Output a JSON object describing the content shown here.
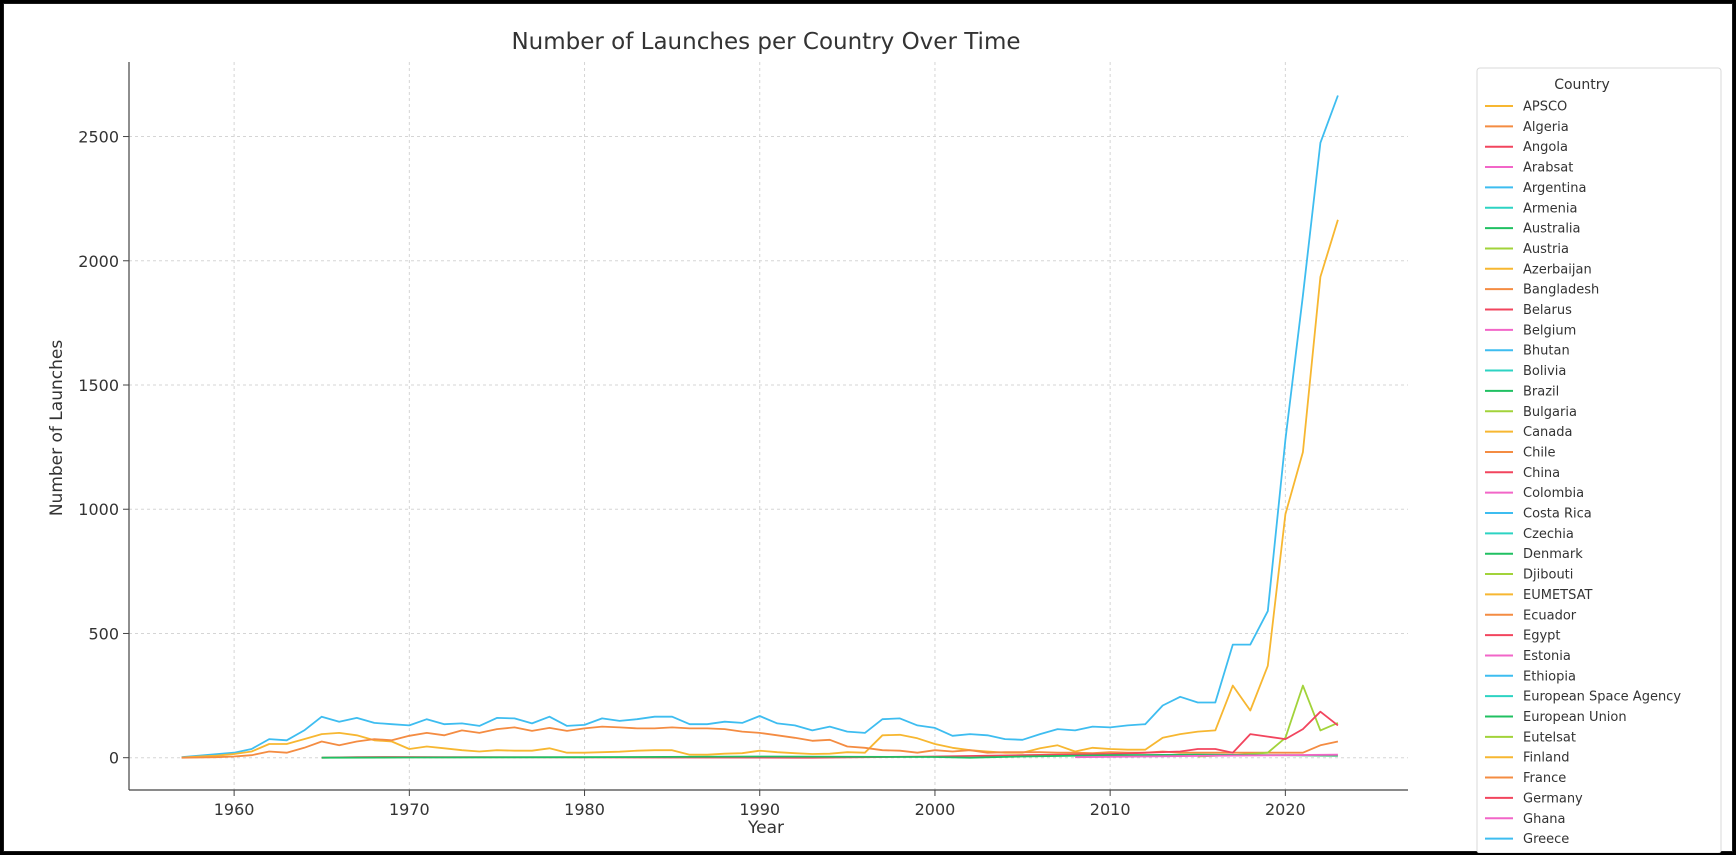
{
  "chart_data": {
    "type": "line",
    "title": "Number of Launches per Country Over Time",
    "xlabel": "Year",
    "ylabel": "Number of Launches",
    "xlim": [
      1954,
      2027
    ],
    "ylim": [
      -130,
      2800
    ],
    "x_ticks": [
      "1960",
      "1970",
      "1980",
      "1990",
      "2000",
      "2010",
      "2020"
    ],
    "x_tick_values": [
      1960,
      1970,
      1980,
      1990,
      2000,
      2010,
      2020
    ],
    "y_ticks": [
      "0",
      "500",
      "1000",
      "1500",
      "2000",
      "2500"
    ],
    "y_tick_values": [
      0,
      500,
      1000,
      1500,
      2000,
      2500
    ],
    "grid": true,
    "legend": {
      "title": "Country",
      "placement": "right outside",
      "entries": [
        {
          "name": "APSCO",
          "color": "#f7b731"
        },
        {
          "name": "Algeria",
          "color": "#f48c42"
        },
        {
          "name": "Angola",
          "color": "#f2455e"
        },
        {
          "name": "Arabsat",
          "color": "#f266c8"
        },
        {
          "name": "Argentina",
          "color": "#3ebdf0"
        },
        {
          "name": "Armenia",
          "color": "#2dd3c3"
        },
        {
          "name": "Australia",
          "color": "#20c062"
        },
        {
          "name": "Austria",
          "color": "#a2d33a"
        },
        {
          "name": "Azerbaijan",
          "color": "#f7b731"
        },
        {
          "name": "Bangladesh",
          "color": "#f48c42"
        },
        {
          "name": "Belarus",
          "color": "#f2455e"
        },
        {
          "name": "Belgium",
          "color": "#f266c8"
        },
        {
          "name": "Bhutan",
          "color": "#3ebdf0"
        },
        {
          "name": "Bolivia",
          "color": "#2dd3c3"
        },
        {
          "name": "Brazil",
          "color": "#20c062"
        },
        {
          "name": "Bulgaria",
          "color": "#a2d33a"
        },
        {
          "name": "Canada",
          "color": "#f7b731"
        },
        {
          "name": "Chile",
          "color": "#f48c42"
        },
        {
          "name": "China",
          "color": "#f2455e"
        },
        {
          "name": "Colombia",
          "color": "#f266c8"
        },
        {
          "name": "Costa Rica",
          "color": "#3ebdf0"
        },
        {
          "name": "Czechia",
          "color": "#2dd3c3"
        },
        {
          "name": "Denmark",
          "color": "#20c062"
        },
        {
          "name": "Djibouti",
          "color": "#a2d33a"
        },
        {
          "name": "EUMETSAT",
          "color": "#f7b731"
        },
        {
          "name": "Ecuador",
          "color": "#f48c42"
        },
        {
          "name": "Egypt",
          "color": "#f2455e"
        },
        {
          "name": "Estonia",
          "color": "#f266c8"
        },
        {
          "name": "Ethiopia",
          "color": "#3ebdf0"
        },
        {
          "name": "European Space Agency",
          "color": "#2dd3c3"
        },
        {
          "name": "European Union",
          "color": "#20c062"
        },
        {
          "name": "Eutelsat",
          "color": "#a2d33a"
        },
        {
          "name": "Finland",
          "color": "#f7b731"
        },
        {
          "name": "France",
          "color": "#f48c42"
        },
        {
          "name": "Germany",
          "color": "#f2455e"
        },
        {
          "name": "Ghana",
          "color": "#f266c8"
        },
        {
          "name": "Greece",
          "color": "#3ebdf0"
        }
      ]
    },
    "series": [
      {
        "name": "Argentina",
        "color": "#3ebdf0",
        "x": [
          1957,
          1958,
          1959,
          1960,
          1961,
          1962,
          1963,
          1964,
          1965,
          1966,
          1967,
          1968,
          1969,
          1970,
          1971,
          1972,
          1973,
          1974,
          1975,
          1976,
          1977,
          1978,
          1979,
          1980,
          1981,
          1982,
          1983,
          1984,
          1985,
          1986,
          1987,
          1988,
          1989,
          1990,
          1991,
          1992,
          1993,
          1994,
          1995,
          1996,
          1997,
          1998,
          1999,
          2000,
          2001,
          2002,
          2003,
          2004,
          2005,
          2006,
          2007,
          2008,
          2009,
          2010,
          2011,
          2012,
          2013,
          2014,
          2015,
          2016,
          2017,
          2018,
          2019,
          2020,
          2021,
          2022,
          2023
        ],
        "y": [
          2,
          8,
          14,
          20,
          35,
          75,
          70,
          110,
          165,
          145,
          160,
          140,
          135,
          130,
          155,
          135,
          138,
          128,
          160,
          158,
          138,
          165,
          128,
          132,
          158,
          148,
          155,
          165,
          165,
          135,
          135,
          145,
          140,
          168,
          138,
          130,
          110,
          125,
          105,
          100,
          155,
          158,
          130,
          120,
          88,
          95,
          90,
          75,
          72,
          95,
          115,
          110,
          125,
          122,
          130,
          135,
          210,
          245,
          222,
          222,
          455,
          455,
          590,
          1280,
          1860,
          2475,
          2665
        ]
      },
      {
        "name": "Azerbaijan",
        "color": "#f7b731",
        "x": [
          1957,
          1958,
          1959,
          1960,
          1961,
          1962,
          1963,
          1964,
          1965,
          1966,
          1967,
          1968,
          1969,
          1970,
          1971,
          1972,
          1973,
          1974,
          1975,
          1976,
          1977,
          1978,
          1979,
          1980,
          1981,
          1982,
          1983,
          1984,
          1985,
          1986,
          1987,
          1988,
          1989,
          1990,
          1991,
          1992,
          1993,
          1994,
          1995,
          1996,
          1997,
          1998,
          1999,
          2000,
          2001,
          2002,
          2003,
          2004,
          2005,
          2006,
          2007,
          2008,
          2009,
          2010,
          2011,
          2012,
          2013,
          2014,
          2015,
          2016,
          2017,
          2018,
          2019,
          2020,
          2021,
          2022,
          2023
        ],
        "y": [
          1,
          5,
          8,
          15,
          25,
          55,
          55,
          75,
          95,
          100,
          90,
          70,
          65,
          35,
          45,
          38,
          30,
          25,
          30,
          28,
          28,
          38,
          20,
          20,
          22,
          24,
          28,
          30,
          30,
          12,
          12,
          16,
          18,
          28,
          22,
          18,
          15,
          16,
          22,
          20,
          90,
          92,
          78,
          55,
          40,
          30,
          25,
          20,
          20,
          38,
          50,
          25,
          40,
          35,
          32,
          32,
          80,
          95,
          105,
          110,
          290,
          190,
          370,
          980,
          1230,
          1935,
          2165
        ]
      },
      {
        "name": "Bangladesh",
        "color": "#f48c42",
        "x": [
          1957,
          1958,
          1959,
          1960,
          1961,
          1962,
          1963,
          1964,
          1965,
          1966,
          1967,
          1968,
          1969,
          1970,
          1971,
          1972,
          1973,
          1974,
          1975,
          1976,
          1977,
          1978,
          1979,
          1980,
          1981,
          1982,
          1983,
          1984,
          1985,
          1986,
          1987,
          1988,
          1989,
          1990,
          1991,
          1992,
          1993,
          1994,
          1995,
          1996,
          1997,
          1998,
          1999,
          2000,
          2001,
          2002,
          2003,
          2004,
          2005,
          2006,
          2007,
          2008,
          2009,
          2010,
          2011,
          2012,
          2013,
          2014,
          2015,
          2016,
          2017,
          2018,
          2019,
          2020,
          2021,
          2022,
          2023
        ],
        "y": [
          0,
          1,
          2,
          5,
          10,
          25,
          20,
          40,
          65,
          50,
          65,
          75,
          70,
          88,
          100,
          90,
          110,
          100,
          115,
          122,
          108,
          120,
          108,
          118,
          125,
          122,
          118,
          118,
          122,
          118,
          118,
          115,
          105,
          100,
          90,
          80,
          68,
          72,
          45,
          40,
          30,
          28,
          20,
          30,
          25,
          30,
          20,
          22,
          22,
          22,
          20,
          20,
          18,
          22,
          20,
          20,
          25,
          20,
          20,
          20,
          20,
          20,
          20,
          20,
          20,
          50,
          65
        ]
      },
      {
        "name": "Bulgaria",
        "color": "#a2d33a",
        "x": [
          2015,
          2016,
          2017,
          2018,
          2019,
          2020,
          2021,
          2022,
          2023
        ],
        "y": [
          5,
          8,
          10,
          15,
          20,
          80,
          290,
          110,
          140
        ]
      },
      {
        "name": "Belarus",
        "color": "#f2455e",
        "x": [
          1965,
          1967,
          1969,
          1972,
          1974,
          1992,
          1993,
          2000,
          2005,
          2010,
          2014,
          2015,
          2016,
          2017,
          2018,
          2019,
          2020,
          2021,
          2022,
          2023
        ],
        "y": [
          0,
          2,
          3,
          2,
          2,
          0,
          0,
          5,
          10,
          15,
          25,
          35,
          35,
          20,
          95,
          85,
          75,
          115,
          185,
          130
        ]
      },
      {
        "name": "Brazil",
        "color": "#20c062",
        "x": [
          1965,
          1970,
          1980,
          1990,
          2000,
          2002,
          2005,
          2010,
          2015,
          2020,
          2023
        ],
        "y": [
          0,
          1,
          2,
          5,
          3,
          0,
          5,
          10,
          12,
          10,
          8
        ]
      },
      {
        "name": "Belgium",
        "color": "#f266c8",
        "x": [
          2008,
          2012,
          2016,
          2020,
          2023
        ],
        "y": [
          2,
          5,
          8,
          10,
          12
        ]
      }
    ]
  }
}
